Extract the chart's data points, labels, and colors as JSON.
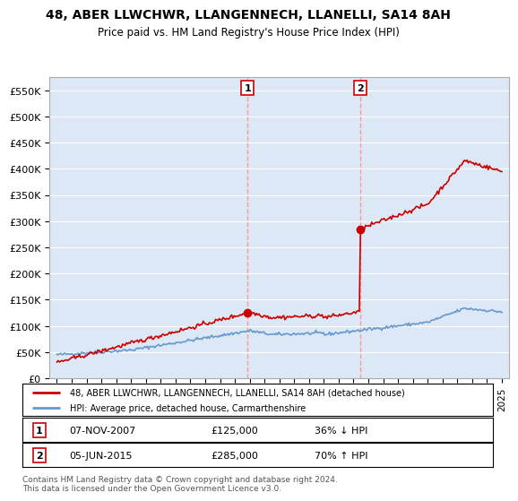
{
  "title": "48, ABER LLWCHWR, LLANGENNECH, LLANELLI, SA14 8AH",
  "subtitle": "Price paid vs. HM Land Registry's House Price Index (HPI)",
  "ylabel_ticks": [
    "£0",
    "£50K",
    "£100K",
    "£150K",
    "£200K",
    "£250K",
    "£300K",
    "£350K",
    "£400K",
    "£450K",
    "£500K",
    "£550K"
  ],
  "ytick_values": [
    0,
    50000,
    100000,
    150000,
    200000,
    250000,
    300000,
    350000,
    400000,
    450000,
    500000,
    550000
  ],
  "ylim": [
    0,
    575000
  ],
  "xlim_start": 1994.5,
  "xlim_end": 2025.5,
  "xticks": [
    1995,
    1996,
    1997,
    1998,
    1999,
    2000,
    2001,
    2002,
    2003,
    2004,
    2005,
    2006,
    2007,
    2008,
    2009,
    2010,
    2011,
    2012,
    2013,
    2014,
    2015,
    2016,
    2017,
    2018,
    2019,
    2020,
    2021,
    2022,
    2023,
    2024,
    2025
  ],
  "legend_line1": "48, ABER LLWCHWR, LLANGENNECH, LLANELLI, SA14 8AH (detached house)",
  "legend_line2": "HPI: Average price, detached house, Carmarthenshire",
  "sale1_date": 2007.85,
  "sale1_price": 125000,
  "sale1_label": "1",
  "sale2_date": 2015.43,
  "sale2_price": 285000,
  "sale2_label": "2",
  "footer": "Contains HM Land Registry data © Crown copyright and database right 2024.\nThis data is licensed under the Open Government Licence v3.0.",
  "hpi_color": "#6699cc",
  "price_color": "#cc0000",
  "marker_color": "#cc0000",
  "vline_color": "#ff9999",
  "background_color": "#ffffff",
  "plot_bg_color": "#dce8f5"
}
